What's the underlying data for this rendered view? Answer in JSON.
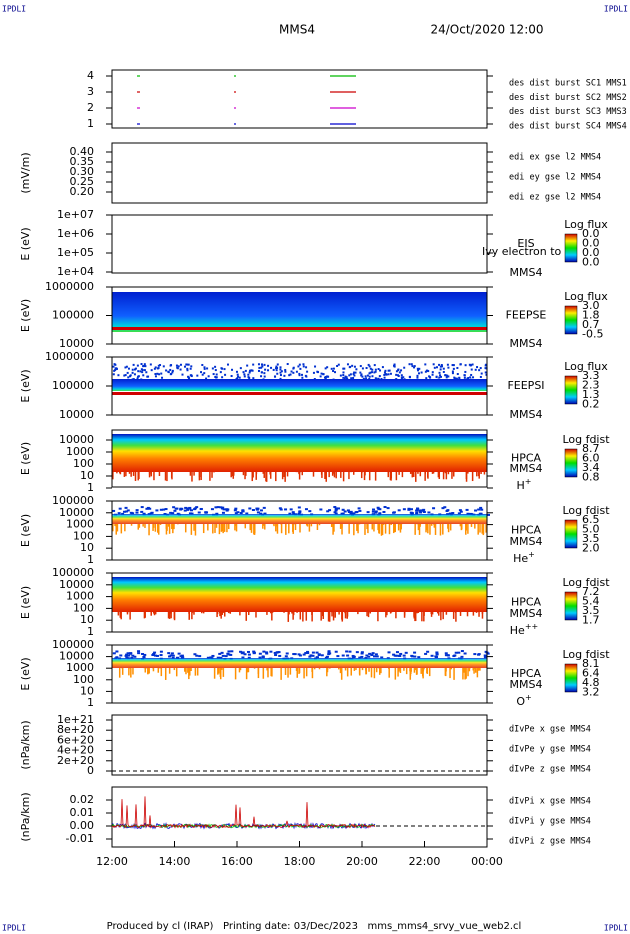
{
  "corners": [
    "IPDLI",
    "IPDLI",
    "IPDLI",
    "IPDLI"
  ],
  "header": {
    "spacecraft": "MMS4",
    "date": "24/Oct/2020 12:00"
  },
  "panels": [
    {
      "yticks": [
        "4",
        "3",
        "2",
        "1"
      ],
      "legend": [
        "des dist burst SC1 MMS1",
        "des dist burst SC2 MMS2",
        "des dist burst SC3 MMS3",
        "des dist burst SC4 MMS4"
      ]
    },
    {
      "ylabel": "(mV/m)",
      "yticks": [
        "0.40",
        "0.35",
        "0.30",
        "0.25",
        "0.20"
      ],
      "legend": [
        "edi ex gse l2 MMS4",
        "edi ey gse l2 MMS4",
        "edi ez gse l2 MMS4"
      ]
    },
    {
      "ylabel": "E (eV)",
      "yticks": [
        "1e+07",
        "1e+06",
        "1e+05",
        "1e+04"
      ],
      "instrument": "EIS",
      "spacecraft": "MMS4",
      "cbar_title": "Log flux",
      "cbar_ticks": [
        "0.0",
        "0.0",
        "0.0",
        "0.0"
      ],
      "overlay": "Ivy electron to"
    },
    {
      "ylabel": "E (eV)",
      "yticks": [
        "1000000",
        "100000",
        "10000"
      ],
      "instrument": "FEEPSE",
      "spacecraft": "MMS4",
      "cbar_title": "Log flux",
      "cbar_ticks": [
        "3.0",
        "1.8",
        "0.7",
        "-0.5"
      ]
    },
    {
      "ylabel": "E (eV)",
      "yticks": [
        "1000000",
        "100000",
        "10000"
      ],
      "instrument": "FEEPSI",
      "spacecraft": "MMS4",
      "cbar_title": "Log flux",
      "cbar_ticks": [
        "3.3",
        "2.3",
        "1.3",
        "0.2"
      ]
    },
    {
      "ylabel": "E (eV)",
      "yticks": [
        "10000",
        "1000",
        "100",
        "10",
        "1"
      ],
      "instrument": "HPCA",
      "spacecraft": "MMS4",
      "species": {
        "base": "H",
        "sup": "+"
      },
      "cbar_title": "Log fdist",
      "cbar_ticks": [
        "8.7",
        "6.0",
        "3.4",
        "0.8"
      ]
    },
    {
      "ylabel": "E (eV)",
      "yticks": [
        "100000",
        "10000",
        "1000",
        "100",
        "10",
        "1"
      ],
      "instrument": "HPCA",
      "spacecraft": "MMS4",
      "species": {
        "base": "He",
        "sup": "+"
      },
      "cbar_title": "Log fdist",
      "cbar_ticks": [
        "6.5",
        "5.0",
        "3.5",
        "2.0"
      ]
    },
    {
      "ylabel": "E (eV)",
      "yticks": [
        "100000",
        "10000",
        "1000",
        "100",
        "10",
        "1"
      ],
      "instrument": "HPCA",
      "spacecraft": "MMS4",
      "species": {
        "base": "He",
        "sup": "++"
      },
      "cbar_title": "Log fdist",
      "cbar_ticks": [
        "7.2",
        "5.4",
        "3.5",
        "1.7"
      ]
    },
    {
      "ylabel": "E (eV)",
      "yticks": [
        "100000",
        "10000",
        "1000",
        "100",
        "10",
        "1"
      ],
      "instrument": "HPCA",
      "spacecraft": "MMS4",
      "species": {
        "base": "O",
        "sup": "+"
      },
      "cbar_title": "Log fdist",
      "cbar_ticks": [
        "8.1",
        "6.4",
        "4.8",
        "3.2"
      ]
    },
    {
      "ylabel": "(nPa/km)",
      "yticks": [
        "1e+21",
        "8e+20",
        "6e+20",
        "4e+20",
        "2e+20",
        "0"
      ],
      "legend": [
        "dIvPe x gse MMS4",
        "dIvPe y gse MMS4",
        "dIvPe z gse MMS4"
      ]
    },
    {
      "ylabel": "(nPa/km)",
      "yticks": [
        "0.02",
        "0.01",
        "0.00",
        "-0.01"
      ],
      "legend": [
        "dIvPi x gse MMS4",
        "dIvPi y gse MMS4",
        "dIvPi z gse MMS4"
      ]
    }
  ],
  "xticks": [
    "12:00",
    "14:00",
    "16:00",
    "18:00",
    "20:00",
    "22:00",
    "00:00"
  ],
  "footer": "Produced by cl (IRAP)   Printing date: 03/Dec/2023   mms_mms4_srvy_vue_web2.cl"
}
